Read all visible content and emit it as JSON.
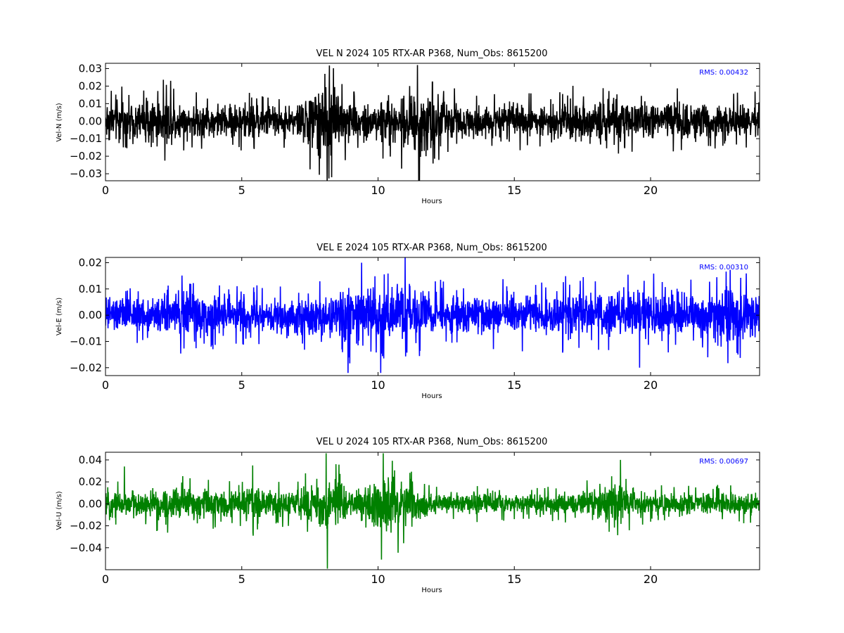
{
  "chart_data": [
    {
      "type": "line",
      "title": "VEL N 2024 105 RTX-AR  P368, Num_Obs: 8615200",
      "xlabel": "Hours",
      "ylabel": "Vel-N (m/s)",
      "xlim": [
        0,
        24
      ],
      "ylim": [
        -0.034,
        0.033
      ],
      "xticks": [
        0,
        5,
        10,
        15,
        20
      ],
      "xtick_labels": [
        "0",
        "5",
        "10",
        "15",
        "20"
      ],
      "yticks": [
        -0.03,
        -0.02,
        -0.01,
        0.0,
        0.01,
        0.02,
        0.03
      ],
      "ytick_labels": [
        "−0.03",
        "−0.02",
        "−0.01",
        "0.00",
        "0.01",
        "0.02",
        "0.03"
      ],
      "annotation": "RMS:  0.00432",
      "annotation_color": "#0000ff",
      "grid": false,
      "series": [
        {
          "color": "#000000",
          "envelope_x": [
            0,
            1,
            2,
            3,
            4,
            5,
            6,
            7,
            7.8,
            8.2,
            8.6,
            9,
            10,
            11,
            11.5,
            12,
            13,
            14,
            15,
            16,
            16.5,
            17,
            18,
            19,
            20,
            21,
            22,
            23,
            24
          ],
          "envelope_y": [
            0.016,
            0.014,
            0.017,
            0.012,
            0.011,
            0.012,
            0.011,
            0.012,
            0.024,
            0.026,
            0.02,
            0.014,
            0.014,
            0.02,
            0.028,
            0.018,
            0.012,
            0.011,
            0.012,
            0.011,
            0.009,
            0.016,
            0.014,
            0.013,
            0.012,
            0.014,
            0.012,
            0.011,
            0.013
          ],
          "peaks": [
            [
              11.45,
              0.032
            ],
            [
              11.5,
              -0.034
            ],
            [
              8.3,
              -0.032
            ],
            [
              2.4,
              0.023
            ],
            [
              8.05,
              0.027
            ]
          ]
        }
      ]
    },
    {
      "type": "line",
      "title": "VEL E 2024 105 RTX-AR  P368, Num_Obs: 8615200",
      "xlabel": "Hours",
      "ylabel": "Vel-E (m/s)",
      "xlim": [
        0,
        24
      ],
      "ylim": [
        -0.023,
        0.022
      ],
      "xticks": [
        0,
        5,
        10,
        15,
        20
      ],
      "xtick_labels": [
        "0",
        "5",
        "10",
        "15",
        "20"
      ],
      "yticks": [
        -0.02,
        -0.01,
        0.0,
        0.01,
        0.02
      ],
      "ytick_labels": [
        "−0.02",
        "−0.01",
        "0.00",
        "0.01",
        "0.02"
      ],
      "annotation": "RMS:  0.00310",
      "annotation_color": "#0000ff",
      "grid": false,
      "series": [
        {
          "color": "#0000ff",
          "envelope_x": [
            0,
            1,
            2,
            3,
            4,
            5,
            6,
            7,
            8,
            8.5,
            9,
            9.5,
            10,
            10.5,
            11,
            12,
            13,
            14,
            15,
            16,
            17,
            18,
            19,
            20,
            21,
            22,
            23,
            24
          ],
          "envelope_y": [
            0.009,
            0.008,
            0.008,
            0.011,
            0.009,
            0.008,
            0.008,
            0.01,
            0.009,
            0.011,
            0.015,
            0.013,
            0.012,
            0.011,
            0.013,
            0.01,
            0.008,
            0.009,
            0.01,
            0.009,
            0.011,
            0.01,
            0.011,
            0.012,
            0.01,
            0.011,
            0.013,
            0.012
          ],
          "peaks": [
            [
              11.0,
              0.022
            ],
            [
              8.9,
              -0.022
            ],
            [
              9.4,
              0.02
            ],
            [
              10.1,
              -0.022
            ],
            [
              19.6,
              -0.02
            ]
          ]
        }
      ]
    },
    {
      "type": "line",
      "title": "VEL U 2024 105 RTX-AR  P368, Num_Obs: 8615200",
      "xlabel": "Hours",
      "ylabel": "Vel-U (m/s)",
      "xlim": [
        0,
        24
      ],
      "ylim": [
        -0.06,
        0.047
      ],
      "xticks": [
        0,
        5,
        10,
        15,
        20
      ],
      "xtick_labels": [
        "0",
        "5",
        "10",
        "15",
        "20"
      ],
      "yticks": [
        -0.04,
        -0.02,
        0.0,
        0.02,
        0.04
      ],
      "ytick_labels": [
        "−0.04",
        "−0.02",
        "0.00",
        "0.02",
        "0.04"
      ],
      "annotation": "RMS:  0.00697",
      "annotation_color": "#0000ff",
      "grid": false,
      "series": [
        {
          "color": "#008000",
          "envelope_x": [
            0,
            1,
            2,
            3,
            4,
            5,
            5.5,
            6,
            7,
            7.8,
            8.2,
            8.6,
            9,
            9.5,
            10,
            10.5,
            11,
            11.5,
            12,
            13,
            14,
            15,
            16,
            17,
            18,
            18.8,
            19.5,
            20,
            21,
            22,
            23,
            24
          ],
          "envelope_y": [
            0.016,
            0.014,
            0.018,
            0.02,
            0.016,
            0.014,
            0.022,
            0.016,
            0.015,
            0.028,
            0.035,
            0.024,
            0.012,
            0.02,
            0.035,
            0.036,
            0.028,
            0.015,
            0.012,
            0.011,
            0.012,
            0.01,
            0.011,
            0.014,
            0.016,
            0.025,
            0.014,
            0.012,
            0.012,
            0.012,
            0.013,
            0.013
          ],
          "peaks": [
            [
              8.1,
              0.046
            ],
            [
              8.15,
              -0.059
            ],
            [
              10.2,
              0.046
            ],
            [
              5.4,
              0.035
            ],
            [
              18.9,
              0.04
            ],
            [
              0.7,
              0.034
            ]
          ]
        }
      ]
    }
  ]
}
